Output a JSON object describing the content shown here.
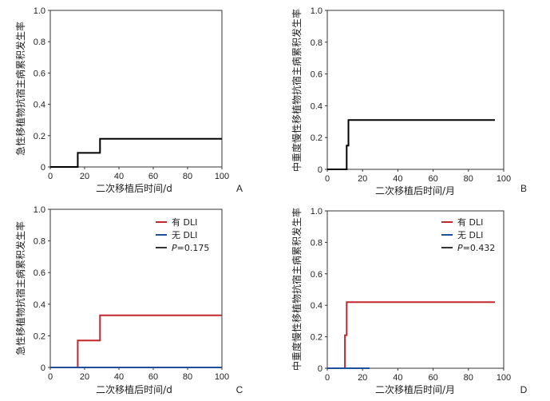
{
  "chart_data": [
    {
      "type": "line",
      "panel_label": "A",
      "xlabel": "二次移植后时间/d",
      "ylabel": "急性移植物抗宿主病累积发生率",
      "xlim": [
        0,
        100
      ],
      "ylim": [
        0,
        1.0
      ],
      "xticks": [
        "0",
        "20",
        "40",
        "60",
        "80",
        "100"
      ],
      "yticks": [
        "0",
        "0.2",
        "0.4",
        "0.6",
        "0.8",
        "1.0"
      ],
      "series": [
        {
          "color": "#000000",
          "step": true,
          "x": [
            0,
            16,
            16,
            29,
            29,
            100
          ],
          "y": [
            0,
            0,
            0.09,
            0.09,
            0.18,
            0.18
          ]
        }
      ],
      "legend": []
    },
    {
      "type": "line",
      "panel_label": "B",
      "xlabel": "二次移植后时间/月",
      "ylabel": "中重度慢性移植物抗宿主病累积发生率",
      "xlim": [
        0,
        100
      ],
      "ylim": [
        0,
        1.0
      ],
      "xticks": [
        "0",
        "20",
        "40",
        "60",
        "80",
        "100"
      ],
      "yticks": [
        "0",
        "0.2",
        "0.4",
        "0.6",
        "0.8",
        "1.0"
      ],
      "series": [
        {
          "color": "#000000",
          "step": true,
          "x": [
            0,
            11,
            11,
            12,
            12,
            95
          ],
          "y": [
            0,
            0,
            0.15,
            0.15,
            0.31,
            0.31
          ]
        }
      ],
      "legend": []
    },
    {
      "type": "line",
      "panel_label": "C",
      "xlabel": "二次移植后时间/d",
      "ylabel": "急性移植物抗宿主病累积发生率",
      "xlim": [
        0,
        100
      ],
      "ylim": [
        0,
        1.0
      ],
      "xticks": [
        "0",
        "20",
        "40",
        "60",
        "80",
        "100"
      ],
      "yticks": [
        "0",
        "0.2",
        "0.4",
        "0.6",
        "0.8",
        "1.0"
      ],
      "series": [
        {
          "name": "有 DLI",
          "color": "#c0282d",
          "step": true,
          "x": [
            0,
            16,
            16,
            29,
            29,
            100
          ],
          "y": [
            0,
            0,
            0.17,
            0.17,
            0.33,
            0.33
          ]
        },
        {
          "name": "无 DLI",
          "color": "#1f4e9c",
          "step": true,
          "x": [
            0,
            100
          ],
          "y": [
            0,
            0
          ]
        }
      ],
      "legend": [
        {
          "label": "有 DLI",
          "color": "#c0282d"
        },
        {
          "label": "无 DLI",
          "color": "#1f4e9c"
        },
        {
          "label_italic": "P",
          "label_rest": "=0.175",
          "color": "#333333"
        }
      ]
    },
    {
      "type": "line",
      "panel_label": "D",
      "xlabel": "二次移植后时间/月",
      "ylabel": "中重度慢性移植物抗宿主病累积发生率",
      "xlim": [
        0,
        100
      ],
      "ylim": [
        0,
        1.0
      ],
      "xticks": [
        "0",
        "20",
        "40",
        "60",
        "80",
        "100"
      ],
      "yticks": [
        "0",
        "0.2",
        "0.4",
        "0.6",
        "0.8",
        "1.0"
      ],
      "series": [
        {
          "name": "有 DLI",
          "color": "#c0282d",
          "step": true,
          "x": [
            0,
            10,
            10,
            11,
            11,
            95
          ],
          "y": [
            0,
            0,
            0.21,
            0.21,
            0.42,
            0.42
          ]
        },
        {
          "name": "无 DLI",
          "color": "#1f4e9c",
          "step": true,
          "x": [
            0,
            24
          ],
          "y": [
            0,
            0
          ]
        }
      ],
      "legend": [
        {
          "label": "有 DLI",
          "color": "#c0282d"
        },
        {
          "label": "无 DLI",
          "color": "#1f4e9c"
        },
        {
          "label_italic": "P",
          "label_rest": "=0.432",
          "color": "#333333"
        }
      ]
    }
  ]
}
